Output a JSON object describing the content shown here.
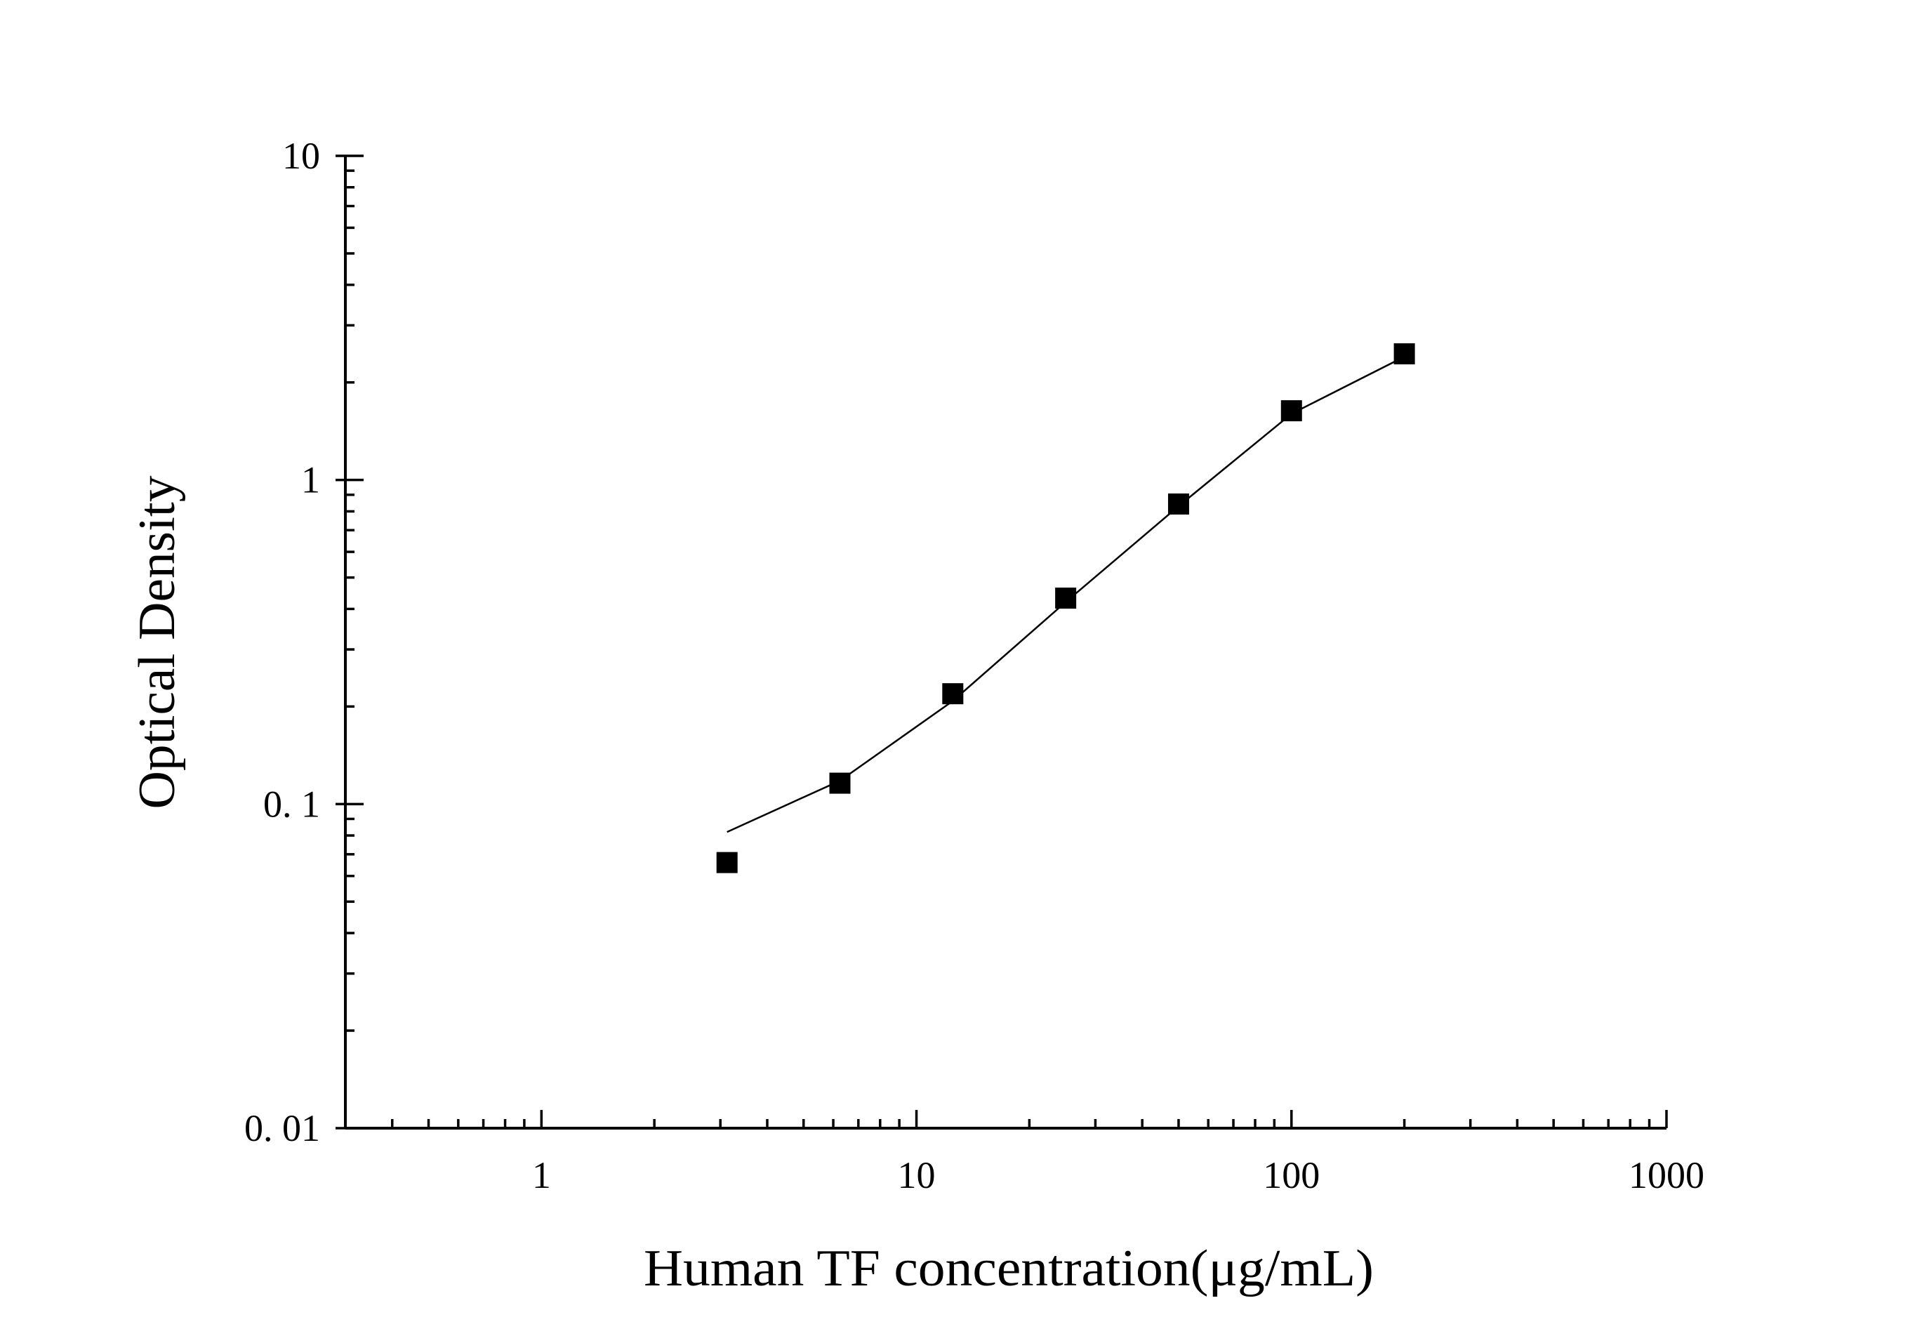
{
  "chart_data": {
    "type": "scatter",
    "xlabel": "Human TF concentration(μg/mL)",
    "ylabel": "Optical Density",
    "xscale": "log",
    "yscale": "log",
    "xlim": [
      0.3,
      1000
    ],
    "ylim": [
      0.01,
      10
    ],
    "x_ticks": [
      {
        "value": 1,
        "label": "1"
      },
      {
        "value": 10,
        "label": "10"
      },
      {
        "value": 100,
        "label": "100"
      },
      {
        "value": 1000,
        "label": "1000"
      }
    ],
    "y_ticks": [
      {
        "value": 0.01,
        "label": "0. 01"
      },
      {
        "value": 0.1,
        "label": "0. 1"
      },
      {
        "value": 1,
        "label": "1"
      },
      {
        "value": 10,
        "label": "10"
      }
    ],
    "grid": false,
    "series": [
      {
        "marker": "square",
        "color": "#000000",
        "x": [
          3.125,
          6.25,
          12.5,
          25,
          50,
          100,
          200
        ],
        "y": [
          0.066,
          0.116,
          0.219,
          0.432,
          0.843,
          1.635,
          2.45
        ]
      }
    ],
    "fit_curve": {
      "color": "#000000",
      "x": [
        3.125,
        6.25,
        12.5,
        25,
        50,
        100,
        200
      ],
      "y": [
        0.082,
        0.118,
        0.208,
        0.42,
        0.83,
        1.6,
        2.4
      ]
    }
  }
}
